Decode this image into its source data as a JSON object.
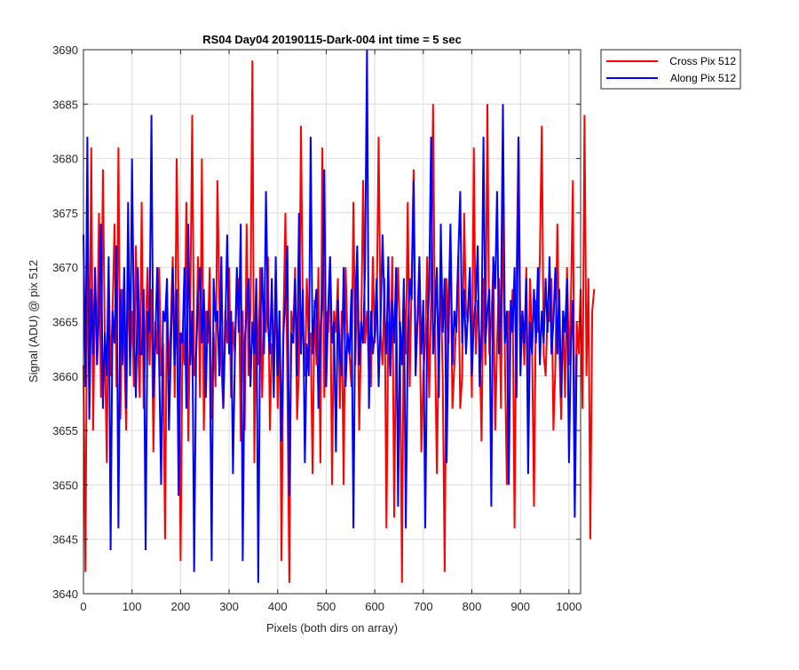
{
  "chart_data": {
    "type": "line",
    "title": "RS04 Day04 20190115-Dark-004 int time = 5 sec",
    "xlabel": "Pixels (both dirs on array)",
    "ylabel": "Signal (ADU) @ pix 512",
    "xlim": [
      0,
      1024
    ],
    "ylim": [
      3640,
      3690
    ],
    "xticks": [
      "0",
      "100",
      "200",
      "300",
      "400",
      "500",
      "600",
      "700",
      "800",
      "900",
      "1000"
    ],
    "yticks": [
      "3640",
      "3645",
      "3650",
      "3655",
      "3660",
      "3665",
      "3670",
      "3675",
      "3680",
      "3685",
      "3690"
    ],
    "grid": true,
    "legend_position": "outside top-right",
    "series": [
      {
        "name": "Cross Pix 512",
        "color": "#ff0000",
        "x_start": 0,
        "x_step": 4,
        "values": [
          3661,
          3642,
          3672,
          3658,
          3681,
          3655,
          3669,
          3662,
          3675,
          3658,
          3679,
          3663,
          3652,
          3670,
          3660,
          3666,
          3674,
          3659,
          3681,
          3656,
          3668,
          3663,
          3655,
          3670,
          3661,
          3666,
          3659,
          3672,
          3663,
          3658,
          3676,
          3657,
          3664,
          3670,
          3661,
          3668,
          3653,
          3665,
          3662,
          3670,
          3660,
          3663,
          3645,
          3668,
          3660,
          3665,
          3671,
          3658,
          3680,
          3667,
          3643,
          3664,
          3661,
          3676,
          3654,
          3666,
          3684,
          3660,
          3662,
          3671,
          3658,
          3680,
          3655,
          3666,
          3663,
          3670,
          3656,
          3664,
          3659,
          3678,
          3667,
          3661,
          3657,
          3666,
          3663,
          3670,
          3658,
          3665,
          3662,
          3668,
          3669,
          3654,
          3666,
          3655,
          3674,
          3660,
          3666,
          3689,
          3652,
          3668,
          3661,
          3670,
          3658,
          3667,
          3664,
          3671,
          3655,
          3663,
          3662,
          3669,
          3657,
          3666,
          3643,
          3665,
          3675,
          3659,
          3641,
          3666,
          3664,
          3670,
          3656,
          3661,
          3683,
          3665,
          3660,
          3669,
          3663,
          3664,
          3651,
          3667,
          3661,
          3670,
          3652,
          3681,
          3658,
          3666,
          3664,
          3671,
          3650,
          3666,
          3664,
          3669,
          3657,
          3666,
          3650,
          3670,
          3663,
          3662,
          3659,
          3676,
          3661,
          3670,
          3655,
          3664,
          3678,
          3663,
          3666,
          3660,
          3659,
          3671,
          3663,
          3666,
          3682,
          3664,
          3661,
          3669,
          3646,
          3665,
          3660,
          3671,
          3647,
          3664,
          3670,
          3663,
          3641,
          3668,
          3662,
          3676,
          3659,
          3669,
          3679,
          3663,
          3665,
          3668,
          3653,
          3660,
          3663,
          3671,
          3658,
          3667,
          3685,
          3664,
          3651,
          3664,
          3668,
          3660,
          3642,
          3669,
          3663,
          3673,
          3657,
          3661,
          3665,
          3671,
          3657,
          3660,
          3675,
          3666,
          3665,
          3669,
          3658,
          3681,
          3662,
          3667,
          3663,
          3654,
          3669,
          3661,
          3685,
          3662,
          3665,
          3670,
          3655,
          3663,
          3669,
          3657,
          3676,
          3662,
          3650,
          3666,
          3664,
          3668,
          3646,
          3669,
          3682,
          3663,
          3666,
          3661,
          3670,
          3658,
          3669,
          3663,
          3648,
          3667,
          3664,
          3671,
          3683,
          3662,
          3660,
          3666,
          3665,
          3669,
          3655,
          3661,
          3674,
          3663,
          3656,
          3666,
          3658,
          3670,
          3661,
          3667,
          3678,
          3649,
          3665,
          3662,
          3668,
          3657,
          3684,
          3660,
          3669,
          3645,
          3666,
          3668
        ]
      },
      {
        "name": "Along Pix 512",
        "color": "#0000ff",
        "x_start": 0,
        "x_step": 4,
        "values": [
          3673,
          3659,
          3682,
          3656,
          3668,
          3662,
          3670,
          3661,
          3666,
          3674,
          3657,
          3664,
          3660,
          3671,
          3644,
          3666,
          3663,
          3672,
          3646,
          3668,
          3661,
          3670,
          3657,
          3676,
          3660,
          3680,
          3664,
          3658,
          3670,
          3662,
          3662,
          3668,
          3644,
          3666,
          3664,
          3684,
          3658,
          3663,
          3670,
          3661,
          3650,
          3666,
          3665,
          3669,
          3655,
          3662,
          3670,
          3661,
          3668,
          3649,
          3664,
          3663,
          3670,
          3657,
          3674,
          3661,
          3666,
          3642,
          3662,
          3667,
          3670,
          3663,
          3668,
          3658,
          3666,
          3664,
          3643,
          3669,
          3665,
          3666,
          3660,
          3671,
          3657,
          3664,
          3673,
          3662,
          3666,
          3651,
          3662,
          3670,
          3664,
          3674,
          3643,
          3663,
          3666,
          3669,
          3659,
          3665,
          3662,
          3669,
          3641,
          3665,
          3670,
          3662,
          3677,
          3665,
          3662,
          3669,
          3658,
          3671,
          3660,
          3666,
          3654,
          3664,
          3667,
          3672,
          3649,
          3664,
          3663,
          3669,
          3660,
          3675,
          3662,
          3668,
          3652,
          3663,
          3660,
          3682,
          3662,
          3666,
          3668,
          3657,
          3664,
          3667,
          3679,
          3659,
          3666,
          3671,
          3663,
          3665,
          3653,
          3667,
          3662,
          3660,
          3670,
          3659,
          3664,
          3662,
          3668,
          3646,
          3667,
          3672,
          3661,
          3665,
          3663,
          3670,
          3690,
          3657,
          3666,
          3662,
          3664,
          3669,
          3659,
          3665,
          3673,
          3666,
          3662,
          3671,
          3660,
          3667,
          3663,
          3670,
          3648,
          3665,
          3661,
          3669,
          3646,
          3663,
          3669,
          3667,
          3678,
          3660,
          3665,
          3671,
          3662,
          3667,
          3646,
          3664,
          3668,
          3682,
          3662,
          3665,
          3670,
          3658,
          3674,
          3664,
          3669,
          3652,
          3666,
          3674,
          3661,
          3666,
          3664,
          3671,
          3677,
          3663,
          3668,
          3662,
          3666,
          3670,
          3660,
          3665,
          3667,
          3672,
          3659,
          3664,
          3682,
          3663,
          3666,
          3668,
          3648,
          3671,
          3668,
          3677,
          3662,
          3666,
          3685,
          3663,
          3666,
          3650,
          3667,
          3664,
          3670,
          3658,
          3682,
          3660,
          3666,
          3663,
          3669,
          3651,
          3665,
          3662,
          3668,
          3663,
          3670,
          3661,
          3666,
          3663,
          3669,
          3664,
          3671,
          3662,
          3665,
          3670,
          3662,
          3668,
          3658,
          3666,
          3664,
          3669,
          3652,
          3663,
          3667,
          3647,
          3662
        ]
      }
    ]
  }
}
